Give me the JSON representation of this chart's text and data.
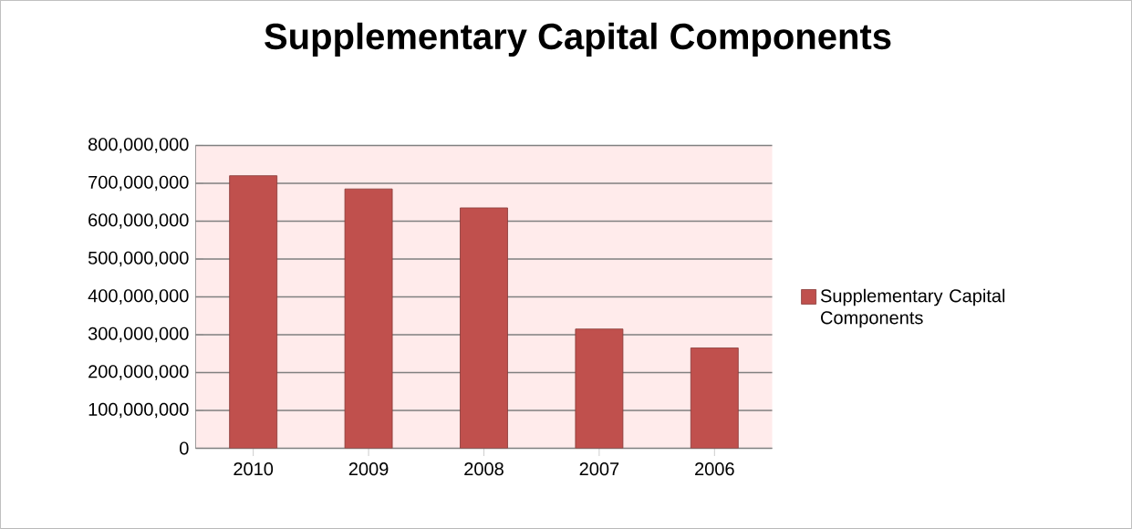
{
  "chart_data": {
    "type": "bar",
    "title": "Supplementary Capital Components",
    "categories": [
      "2010",
      "2009",
      "2008",
      "2007",
      "2006"
    ],
    "series": [
      {
        "name": "Supplementary Capital Components",
        "color": "#c0504d",
        "values": [
          720000000,
          685000000,
          635000000,
          315000000,
          265000000
        ]
      }
    ],
    "ylim": [
      0,
      800000000
    ],
    "yticks": [
      0,
      {
        "value": 100000000,
        "label": "100,000,000"
      },
      {
        "value": 200000000,
        "label": "200,000,000"
      },
      {
        "value": 300000000,
        "label": "300,000,000"
      },
      {
        "value": 400000000,
        "label": "400,000,000"
      },
      {
        "value": 500000000,
        "label": "500,000,000"
      },
      {
        "value": 600000000,
        "label": "600,000,000"
      },
      {
        "value": 700000000,
        "label": "700,000,000"
      },
      {
        "value": 800000000,
        "label": "800,000,000"
      }
    ],
    "grid": "y",
    "legend": "right"
  }
}
